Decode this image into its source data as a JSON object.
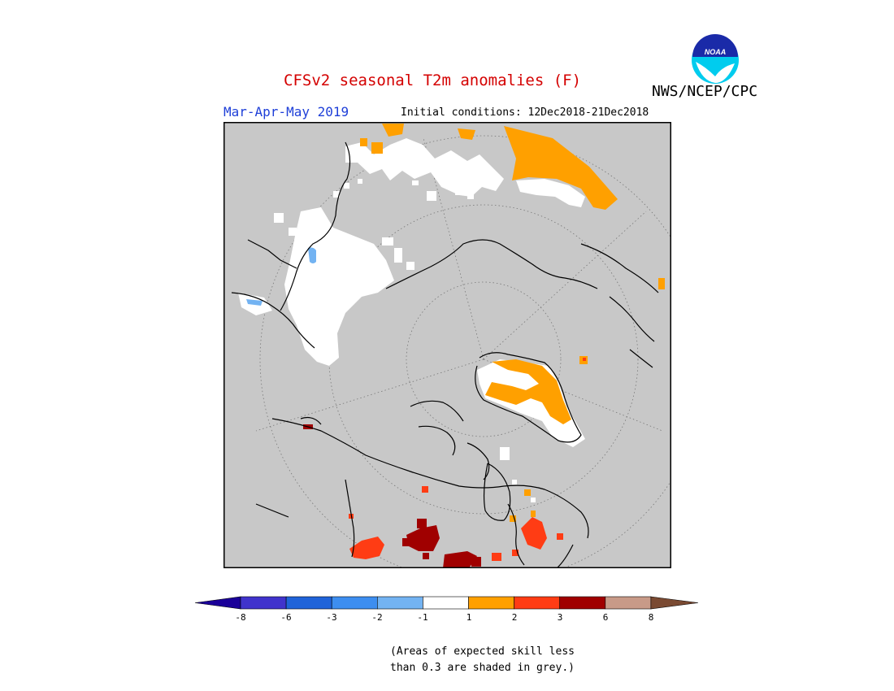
{
  "title": "CFSv2 seasonal T2m anomalies (F)",
  "agency": "NWS/NCEP/CPC",
  "season": "Mar-Apr-May 2019",
  "initial_conditions": "Initial conditions: 12Dec2018-21Dec2018",
  "logo_text": "NOAA",
  "colors": {
    "title": "#d40000",
    "season": "#1e3fd8",
    "skill_mask_grey": "#c8c8c8",
    "land_outline": "#000000"
  },
  "legend": {
    "bins": [
      {
        "color": "#1a0099"
      },
      {
        "color": "#4033cc"
      },
      {
        "color": "#1f63d9"
      },
      {
        "color": "#3d8ef0"
      },
      {
        "color": "#73b3f2"
      },
      {
        "color": "#ffffff"
      },
      {
        "color": "#ffa000"
      },
      {
        "color": "#ff3c14"
      },
      {
        "color": "#a00000"
      },
      {
        "color": "#c89a88"
      },
      {
        "color": "#7a4a32"
      }
    ],
    "ticks": [
      "-8",
      "-6",
      "-3",
      "-2",
      "-1",
      "1",
      "2",
      "3",
      "6",
      "8"
    ]
  },
  "note_line1": "(Areas of expected skill less",
  "note_line2": "than 0.3 are shaded in grey.)",
  "map_regions": [
    {
      "name": "siberia-near-normal",
      "category": "-1 to 1"
    },
    {
      "name": "eastern-siberia-warm",
      "category": "1 to 2"
    },
    {
      "name": "greenland-warm",
      "category": "1 to 2"
    },
    {
      "name": "canada-near-normal",
      "category": "-1 to 1"
    },
    {
      "name": "us-southwest-warm",
      "category": "2 to 3"
    },
    {
      "name": "us-south-central-hot",
      "category": "3 to 6"
    },
    {
      "name": "mexico-hot",
      "category": "3 to 6"
    },
    {
      "name": "us-southeast-warm",
      "category": "2 to 3"
    }
  ]
}
